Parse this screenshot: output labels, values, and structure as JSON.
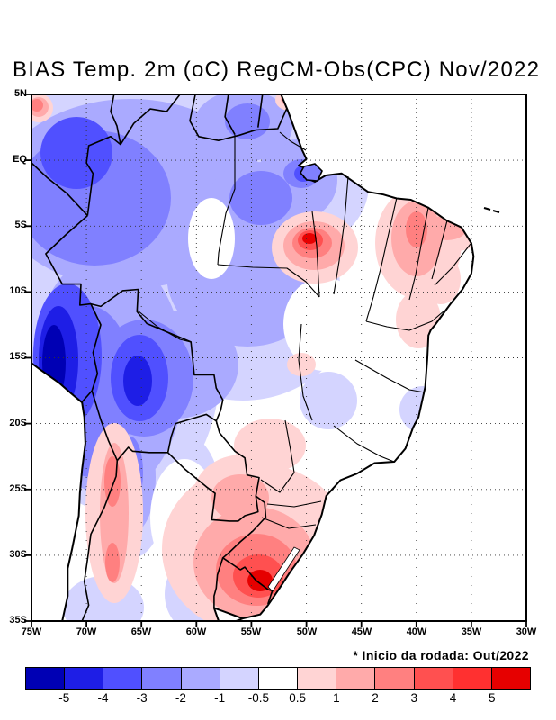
{
  "title": "BIAS Temp. 2m (oC) RegCM-Obs(CPC) Nov/2022",
  "footnote": "* Inicio da rodada: Out/2022",
  "axes": {
    "lat": [
      "5N",
      "EQ",
      "5S",
      "10S",
      "15S",
      "20S",
      "25S",
      "30S",
      "35S"
    ],
    "lon": [
      "75W",
      "70W",
      "65W",
      "60W",
      "55W",
      "50W",
      "45W",
      "40W",
      "35W",
      "30W"
    ]
  },
  "colorbar": {
    "colors": [
      "#0000b4",
      "#1e1ee6",
      "#5050ff",
      "#8080ff",
      "#aaaaff",
      "#d4d4ff",
      "#ffffff",
      "#ffd4d4",
      "#ffaaaa",
      "#ff8080",
      "#ff5050",
      "#ff3030",
      "#e60000"
    ],
    "labels": [
      "-5",
      "-4",
      "-3",
      "-2",
      "-1",
      "-0.5",
      "0.5",
      "1",
      "2",
      "3",
      "4",
      "5"
    ]
  },
  "chart_data": {
    "type": "heatmap",
    "subtype": "filled-contour-map",
    "title": "BIAS Temp. 2m (oC) RegCM-Obs(CPC) Nov/2022",
    "units": "oC",
    "extent": {
      "lon_range": [
        "75W",
        "30W"
      ],
      "lat_range": [
        "5N",
        "35S"
      ]
    },
    "grid": "dotted, every 5 degrees",
    "legend_position": "bottom horizontal colorbar",
    "colorbar_levels": [
      -5,
      -4,
      -3,
      -2,
      -1,
      -0.5,
      0.5,
      1,
      2,
      3,
      4,
      5
    ],
    "run_initialization": "Out/2022",
    "notable_features": [
      {
        "region": "Peruvian Andes / western Amazon",
        "approx_location": "12S-17S 73W",
        "bias_oC": "< -5"
      },
      {
        "region": "Bolivian altiplano",
        "approx_location": "15S-18S 65W",
        "bias_oC": "-4 to -5"
      },
      {
        "region": "northwest Amazon basin (broad area)",
        "approx_location": "5N-10S 75W-55W",
        "bias_oC": "-1 to -3"
      },
      {
        "region": "Amazon river mouth",
        "approx_location": "1S 50W",
        "bias_oC": "-3 to -4"
      },
      {
        "region": "eastern Para hot spot",
        "approx_location": "6S 50W",
        "bias_oC": "> +4"
      },
      {
        "region": "northeast Brazil interior band",
        "approx_location": "2S-9S 39W",
        "bias_oC": "+1 to +3"
      },
      {
        "region": "Andes border band (Chile/Bolivia/Argentina)",
        "approx_location": "18S-30S 68W",
        "bias_oC": "+1 to +3"
      },
      {
        "region": "Rio Grande do Sul / Uruguay hot spot",
        "approx_location": "29S-33S 55W",
        "bias_oC": "+3 to > +5"
      },
      {
        "region": "Paraguay",
        "approx_location": "22S 56W",
        "bias_oC": "+1 to +2"
      },
      {
        "region": "southeast Brazil cool patch",
        "approx_location": "21S 45W",
        "bias_oC": "-1 to -2"
      },
      {
        "region": "central-east Brazil",
        "approx_location": "10S-18S 48W",
        "bias_oC": "-0.5 to +0.5 (near zero)"
      }
    ]
  }
}
